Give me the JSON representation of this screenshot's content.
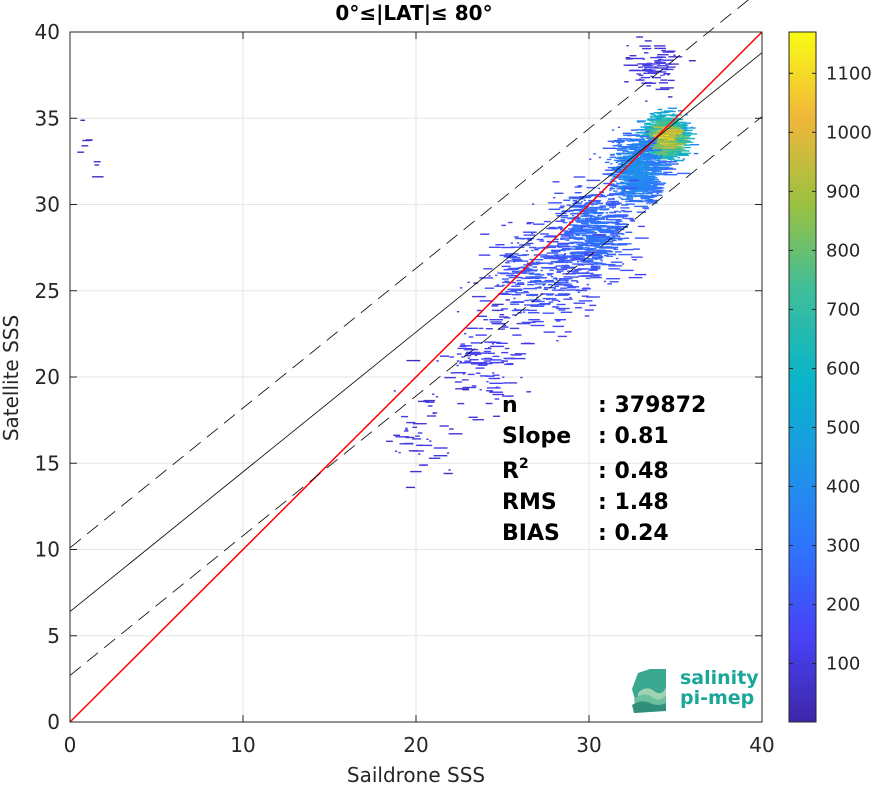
{
  "chart_data": {
    "type": "heatmap",
    "title": "0°≤|LAT|≤ 80°",
    "xlabel": "Saildrone SSS",
    "ylabel": "Satellite SSS",
    "xlim": [
      0,
      40
    ],
    "ylim": [
      0,
      40
    ],
    "xticks": [
      0,
      10,
      20,
      30,
      40
    ],
    "yticks": [
      0,
      5,
      10,
      15,
      20,
      25,
      30,
      35,
      40
    ],
    "grid": true,
    "colorbar": {
      "min": 1,
      "max": 1170,
      "ticks": [
        100,
        200,
        300,
        400,
        500,
        600,
        700,
        800,
        900,
        1000,
        1100
      ],
      "colormap": "parula"
    },
    "lines": [
      {
        "label": "identity",
        "slope": 1.0,
        "intercept": 0.0,
        "color": "#ff0000",
        "style": "solid"
      },
      {
        "label": "fit",
        "slope": 0.81,
        "intercept": 6.4,
        "color": "#000000",
        "style": "solid"
      },
      {
        "label": "fit-upper",
        "slope": 0.81,
        "intercept": 10.1,
        "color": "#000000",
        "style": "dashed"
      },
      {
        "label": "fit-lower",
        "slope": 0.81,
        "intercept": 2.7,
        "color": "#000000",
        "style": "dashed"
      }
    ],
    "stats": [
      {
        "label": "n",
        "value": ": 379872"
      },
      {
        "label": "Slope",
        "value": ": 0.81"
      },
      {
        "label": "R",
        "sup": "2",
        "value": ": 0.48"
      },
      {
        "label": "RMS",
        "value": ": 1.48"
      },
      {
        "label": "BIAS",
        "value": ": 0.24"
      }
    ],
    "density_clusters": [
      {
        "x": 34.2,
        "y": 33.9,
        "sx": 1.0,
        "sy": 1.1,
        "peak": 1150,
        "n": 700
      },
      {
        "x": 32.5,
        "y": 32.0,
        "sx": 1.2,
        "sy": 1.6,
        "peak": 220,
        "n": 650
      },
      {
        "x": 30.0,
        "y": 28.5,
        "sx": 1.8,
        "sy": 2.2,
        "peak": 90,
        "n": 500
      },
      {
        "x": 27.0,
        "y": 26.0,
        "sx": 2.5,
        "sy": 2.5,
        "peak": 40,
        "n": 320
      },
      {
        "x": 24.0,
        "y": 21.0,
        "sx": 2.0,
        "sy": 2.5,
        "peak": 12,
        "n": 120
      },
      {
        "x": 20.0,
        "y": 17.0,
        "sx": 2.0,
        "sy": 2.5,
        "peak": 6,
        "n": 50
      },
      {
        "x": 33.5,
        "y": 38.0,
        "sx": 1.2,
        "sy": 1.2,
        "peak": 8,
        "n": 90
      },
      {
        "x": 1.0,
        "y": 33.0,
        "sx": 0.8,
        "sy": 1.2,
        "peak": 3,
        "n": 8
      }
    ]
  },
  "logo": {
    "line1": "salinity",
    "line2": "pi-mep"
  }
}
